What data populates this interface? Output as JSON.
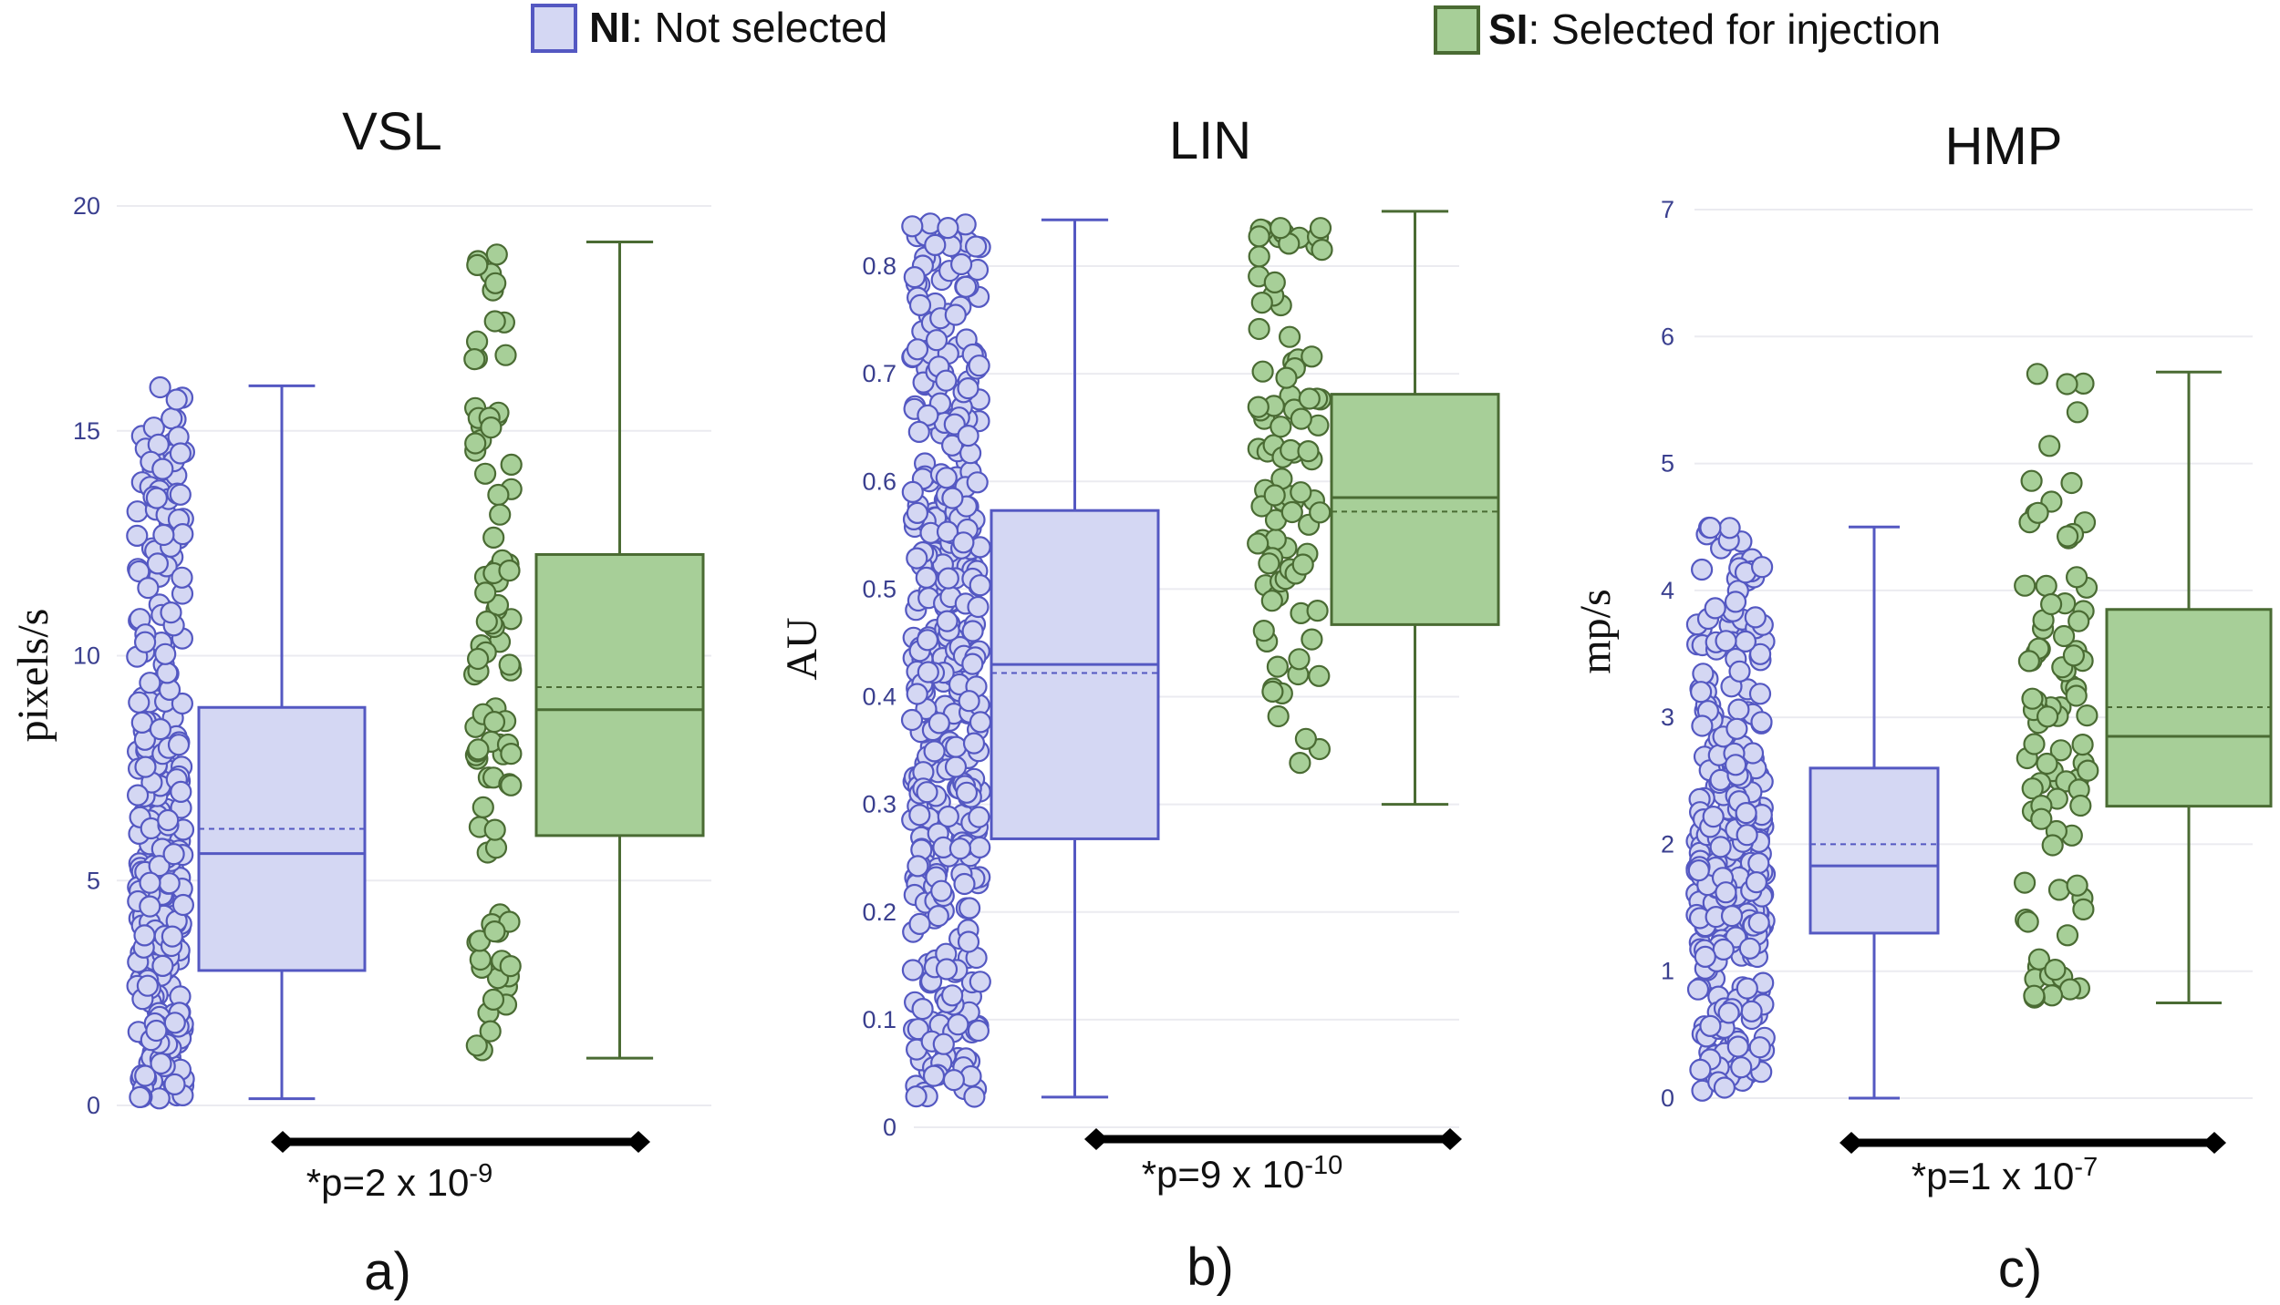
{
  "legend": {
    "ni": {
      "abbr": "NI",
      "label": ": Not selected",
      "fill": "#d4d7f3",
      "stroke": "#5458c2"
    },
    "si": {
      "abbr": "SI",
      "label": ": Selected for injection",
      "fill": "#a7cf98",
      "stroke": "#4a6b33"
    }
  },
  "chart_data": [
    {
      "type": "box",
      "title": "VSL",
      "ylabel": "pixels/s",
      "panel_label": "a)",
      "ylim": [
        0,
        20
      ],
      "yticks": [
        0,
        5,
        10,
        15,
        20
      ],
      "p_value": {
        "prefix": "*p=2 x 10",
        "exponent": "-9"
      },
      "series": [
        {
          "name": "NI",
          "q1": 3.0,
          "median": 5.6,
          "mean": 6.15,
          "q3": 8.85,
          "whisker_low": 0.15,
          "whisker_high": 16.0
        },
        {
          "name": "SI",
          "q1": 6.0,
          "median": 8.8,
          "mean": 9.3,
          "q3": 12.25,
          "whisker_low": 1.05,
          "whisker_high": 19.2
        }
      ]
    },
    {
      "type": "box",
      "title": "LIN",
      "ylabel": "AU",
      "panel_label": "b)",
      "ylim": [
        0,
        0.85
      ],
      "yticks": [
        0,
        0.1,
        0.2,
        0.3,
        0.4,
        0.5,
        0.6,
        0.7,
        0.8
      ],
      "p_value": {
        "prefix": "*p=9 x 10",
        "exponent": "-10"
      },
      "series": [
        {
          "name": "NI",
          "q1": 0.268,
          "median": 0.43,
          "mean": 0.422,
          "q3": 0.573,
          "whisker_low": 0.028,
          "whisker_high": 0.843
        },
        {
          "name": "SI",
          "q1": 0.467,
          "median": 0.585,
          "mean": 0.572,
          "q3": 0.681,
          "whisker_low": 0.3,
          "whisker_high": 0.851
        }
      ]
    },
    {
      "type": "box",
      "title": "HMP",
      "ylabel": "mp/s",
      "panel_label": "c)",
      "ylim": [
        0,
        7
      ],
      "yticks": [
        0,
        1,
        2,
        3,
        4,
        5,
        6,
        7
      ],
      "p_value": {
        "prefix": "*p=1 x 10",
        "exponent": "-7"
      },
      "series": [
        {
          "name": "NI",
          "q1": 1.3,
          "median": 1.83,
          "mean": 2.0,
          "q3": 2.6,
          "whisker_low": 0.0,
          "whisker_high": 4.5
        },
        {
          "name": "SI",
          "q1": 2.3,
          "median": 2.85,
          "mean": 3.08,
          "q3": 3.85,
          "whisker_low": 0.75,
          "whisker_high": 5.72
        }
      ]
    }
  ]
}
